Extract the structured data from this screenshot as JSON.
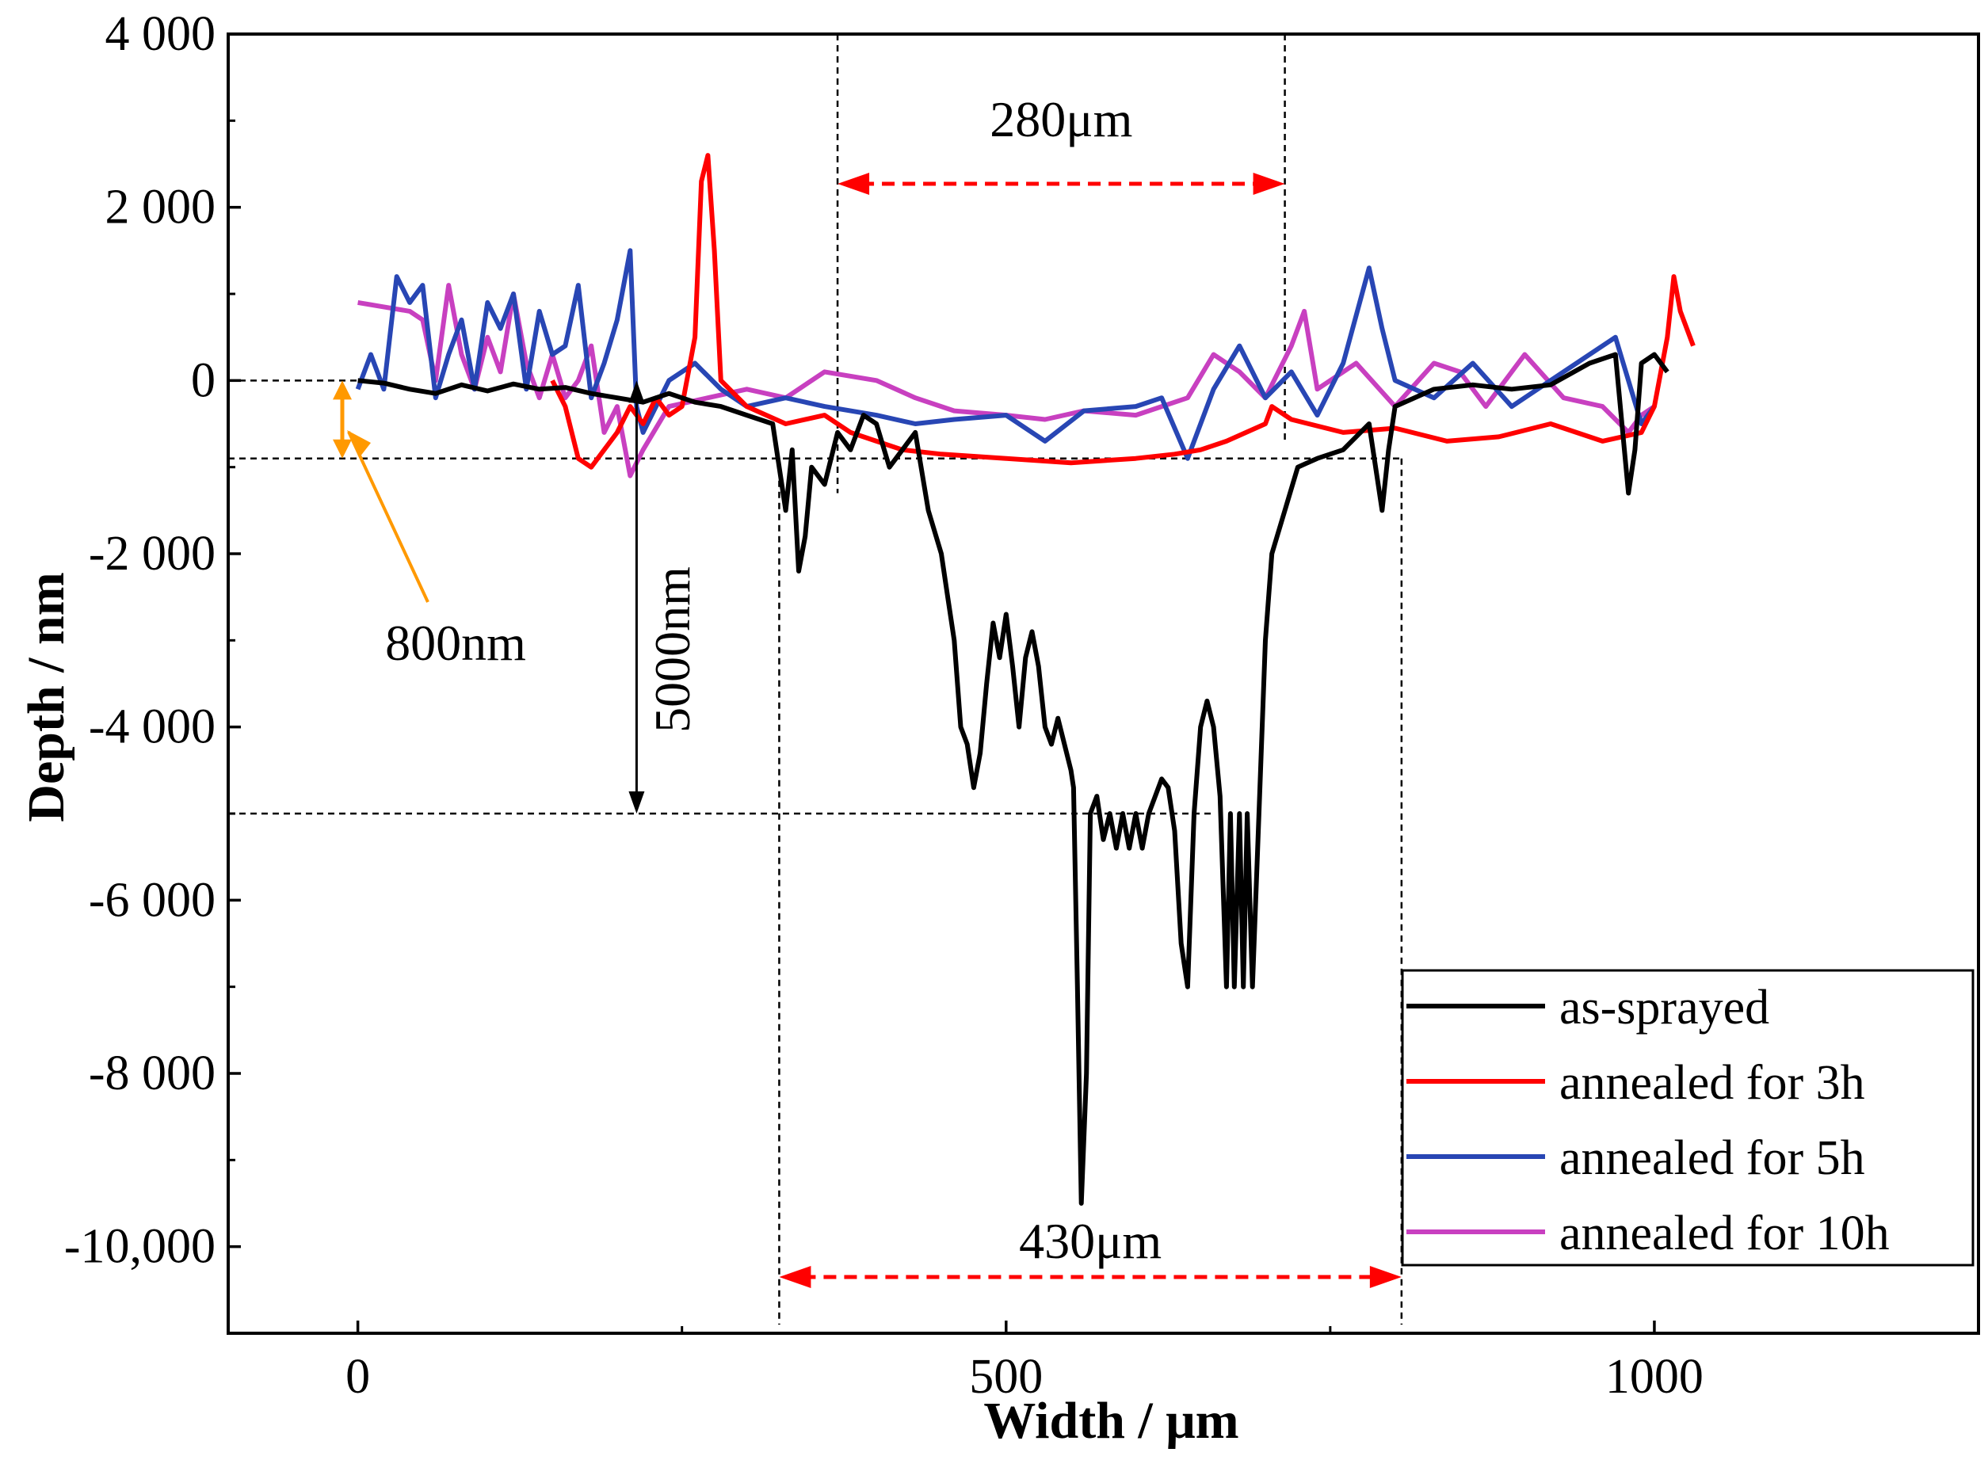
{
  "chart_data": {
    "type": "line",
    "title": "",
    "xlabel": "Width / μm",
    "ylabel": "Depth / nm",
    "xlim": [
      -100,
      1250
    ],
    "ylim": [
      -11000,
      4000
    ],
    "xticks": [
      0,
      500,
      1000
    ],
    "xtick_labels": [
      "0",
      "500",
      "1000"
    ],
    "yticks": [
      4000,
      2000,
      0,
      -2000,
      -4000,
      -6000,
      -8000,
      -10000
    ],
    "ytick_labels": [
      "4 000",
      "2 000",
      "0",
      "-2 000",
      "-4 000",
      "-6 000",
      "-8 000",
      "-10,000"
    ],
    "grid": false,
    "legend_position": "bottom-right",
    "series": [
      {
        "name": "as-sprayed",
        "color": "#000000",
        "points": [
          [
            0,
            0
          ],
          [
            20,
            -30
          ],
          [
            40,
            -100
          ],
          [
            60,
            -150
          ],
          [
            80,
            -50
          ],
          [
            100,
            -120
          ],
          [
            120,
            -40
          ],
          [
            140,
            -100
          ],
          [
            160,
            -80
          ],
          [
            180,
            -150
          ],
          [
            200,
            -200
          ],
          [
            220,
            -250
          ],
          [
            240,
            -150
          ],
          [
            260,
            -250
          ],
          [
            280,
            -300
          ],
          [
            300,
            -400
          ],
          [
            320,
            -500
          ],
          [
            330,
            -1500
          ],
          [
            335,
            -800
          ],
          [
            340,
            -2200
          ],
          [
            345,
            -1800
          ],
          [
            350,
            -1000
          ],
          [
            360,
            -1200
          ],
          [
            370,
            -600
          ],
          [
            380,
            -800
          ],
          [
            390,
            -400
          ],
          [
            400,
            -500
          ],
          [
            410,
            -1000
          ],
          [
            420,
            -800
          ],
          [
            430,
            -600
          ],
          [
            440,
            -1500
          ],
          [
            450,
            -2000
          ],
          [
            455,
            -2500
          ],
          [
            460,
            -3000
          ],
          [
            465,
            -4000
          ],
          [
            470,
            -4200
          ],
          [
            475,
            -4700
          ],
          [
            480,
            -4300
          ],
          [
            485,
            -3500
          ],
          [
            490,
            -2800
          ],
          [
            495,
            -3200
          ],
          [
            500,
            -2700
          ],
          [
            505,
            -3300
          ],
          [
            510,
            -4000
          ],
          [
            515,
            -3200
          ],
          [
            520,
            -2900
          ],
          [
            525,
            -3300
          ],
          [
            530,
            -4000
          ],
          [
            535,
            -4200
          ],
          [
            540,
            -3900
          ],
          [
            545,
            -4200
          ],
          [
            550,
            -4500
          ],
          [
            552,
            -4700
          ],
          [
            555,
            -7000
          ],
          [
            558,
            -9500
          ],
          [
            562,
            -8000
          ],
          [
            565,
            -5000
          ],
          [
            570,
            -4800
          ],
          [
            575,
            -5300
          ],
          [
            580,
            -5000
          ],
          [
            585,
            -5400
          ],
          [
            590,
            -5000
          ],
          [
            595,
            -5400
          ],
          [
            600,
            -5000
          ],
          [
            605,
            -5400
          ],
          [
            610,
            -5000
          ],
          [
            615,
            -4800
          ],
          [
            620,
            -4600
          ],
          [
            625,
            -4700
          ],
          [
            630,
            -5200
          ],
          [
            635,
            -6500
          ],
          [
            640,
            -7000
          ],
          [
            645,
            -5000
          ],
          [
            650,
            -4000
          ],
          [
            655,
            -3700
          ],
          [
            660,
            -4000
          ],
          [
            665,
            -4800
          ],
          [
            670,
            -7000
          ],
          [
            673,
            -5000
          ],
          [
            676,
            -7000
          ],
          [
            680,
            -5000
          ],
          [
            683,
            -7000
          ],
          [
            686,
            -5000
          ],
          [
            690,
            -7000
          ],
          [
            695,
            -5000
          ],
          [
            700,
            -3000
          ],
          [
            705,
            -2000
          ],
          [
            715,
            -1500
          ],
          [
            725,
            -1000
          ],
          [
            740,
            -900
          ],
          [
            760,
            -800
          ],
          [
            780,
            -500
          ],
          [
            790,
            -1500
          ],
          [
            795,
            -800
          ],
          [
            800,
            -300
          ],
          [
            830,
            -100
          ],
          [
            860,
            -50
          ],
          [
            890,
            -100
          ],
          [
            920,
            -50
          ],
          [
            950,
            200
          ],
          [
            970,
            300
          ],
          [
            980,
            -1300
          ],
          [
            985,
            -800
          ],
          [
            990,
            200
          ],
          [
            1000,
            300
          ],
          [
            1010,
            100
          ]
        ]
      },
      {
        "name": "annealed for 3h",
        "color": "#ff0000",
        "points": [
          [
            150,
            0
          ],
          [
            160,
            -300
          ],
          [
            170,
            -900
          ],
          [
            180,
            -1000
          ],
          [
            190,
            -800
          ],
          [
            200,
            -600
          ],
          [
            210,
            -300
          ],
          [
            220,
            -500
          ],
          [
            230,
            -200
          ],
          [
            240,
            -400
          ],
          [
            250,
            -300
          ],
          [
            260,
            500
          ],
          [
            265,
            2300
          ],
          [
            270,
            2600
          ],
          [
            275,
            1500
          ],
          [
            280,
            0
          ],
          [
            300,
            -300
          ],
          [
            330,
            -500
          ],
          [
            360,
            -400
          ],
          [
            380,
            -600
          ],
          [
            400,
            -700
          ],
          [
            420,
            -800
          ],
          [
            450,
            -850
          ],
          [
            500,
            -900
          ],
          [
            550,
            -950
          ],
          [
            600,
            -900
          ],
          [
            630,
            -850
          ],
          [
            650,
            -800
          ],
          [
            670,
            -700
          ],
          [
            700,
            -500
          ],
          [
            705,
            -300
          ],
          [
            720,
            -450
          ],
          [
            760,
            -600
          ],
          [
            800,
            -550
          ],
          [
            840,
            -700
          ],
          [
            880,
            -650
          ],
          [
            920,
            -500
          ],
          [
            960,
            -700
          ],
          [
            990,
            -600
          ],
          [
            1000,
            -300
          ],
          [
            1010,
            500
          ],
          [
            1015,
            1200
          ],
          [
            1020,
            800
          ],
          [
            1030,
            400
          ]
        ]
      },
      {
        "name": "annealed for 5h",
        "color": "#2846b4",
        "points": [
          [
            0,
            -100
          ],
          [
            10,
            300
          ],
          [
            20,
            -100
          ],
          [
            30,
            1200
          ],
          [
            40,
            900
          ],
          [
            50,
            1100
          ],
          [
            60,
            -200
          ],
          [
            70,
            300
          ],
          [
            80,
            700
          ],
          [
            90,
            -100
          ],
          [
            100,
            900
          ],
          [
            110,
            600
          ],
          [
            120,
            1000
          ],
          [
            130,
            -100
          ],
          [
            140,
            800
          ],
          [
            150,
            300
          ],
          [
            160,
            400
          ],
          [
            170,
            1100
          ],
          [
            180,
            -200
          ],
          [
            190,
            200
          ],
          [
            200,
            700
          ],
          [
            210,
            1500
          ],
          [
            215,
            -300
          ],
          [
            220,
            -600
          ],
          [
            240,
            0
          ],
          [
            260,
            200
          ],
          [
            280,
            -100
          ],
          [
            300,
            -300
          ],
          [
            330,
            -200
          ],
          [
            360,
            -300
          ],
          [
            400,
            -400
          ],
          [
            430,
            -500
          ],
          [
            460,
            -450
          ],
          [
            500,
            -400
          ],
          [
            530,
            -700
          ],
          [
            560,
            -350
          ],
          [
            600,
            -300
          ],
          [
            620,
            -200
          ],
          [
            640,
            -900
          ],
          [
            660,
            -100
          ],
          [
            680,
            400
          ],
          [
            700,
            -200
          ],
          [
            720,
            100
          ],
          [
            740,
            -400
          ],
          [
            760,
            200
          ],
          [
            780,
            1300
          ],
          [
            790,
            600
          ],
          [
            800,
            0
          ],
          [
            830,
            -200
          ],
          [
            860,
            200
          ],
          [
            890,
            -300
          ],
          [
            920,
            0
          ],
          [
            950,
            300
          ],
          [
            970,
            500
          ],
          [
            990,
            -500
          ],
          [
            1000,
            -300
          ]
        ]
      },
      {
        "name": "annealed for 10h",
        "color": "#c840c0",
        "points": [
          [
            0,
            900
          ],
          [
            20,
            850
          ],
          [
            40,
            800
          ],
          [
            50,
            700
          ],
          [
            60,
            0
          ],
          [
            70,
            1100
          ],
          [
            80,
            300
          ],
          [
            90,
            -100
          ],
          [
            100,
            500
          ],
          [
            110,
            100
          ],
          [
            120,
            1000
          ],
          [
            130,
            200
          ],
          [
            140,
            -200
          ],
          [
            150,
            300
          ],
          [
            160,
            -200
          ],
          [
            170,
            0
          ],
          [
            180,
            400
          ],
          [
            190,
            -600
          ],
          [
            200,
            -300
          ],
          [
            210,
            -1100
          ],
          [
            220,
            -800
          ],
          [
            240,
            -300
          ],
          [
            270,
            -200
          ],
          [
            300,
            -100
          ],
          [
            330,
            -200
          ],
          [
            360,
            100
          ],
          [
            400,
            0
          ],
          [
            430,
            -200
          ],
          [
            460,
            -350
          ],
          [
            500,
            -400
          ],
          [
            530,
            -450
          ],
          [
            560,
            -350
          ],
          [
            600,
            -400
          ],
          [
            640,
            -200
          ],
          [
            660,
            300
          ],
          [
            680,
            100
          ],
          [
            700,
            -200
          ],
          [
            720,
            400
          ],
          [
            730,
            800
          ],
          [
            740,
            -100
          ],
          [
            770,
            200
          ],
          [
            800,
            -300
          ],
          [
            830,
            200
          ],
          [
            850,
            100
          ],
          [
            870,
            -300
          ],
          [
            900,
            300
          ],
          [
            930,
            -200
          ],
          [
            960,
            -300
          ],
          [
            980,
            -600
          ],
          [
            990,
            -400
          ],
          [
            1000,
            -300
          ]
        ]
      }
    ],
    "annotations": {
      "label_280": "280μm",
      "label_430": "430μm",
      "label_800nm": "800nm",
      "label_5000nm": "5000nm",
      "ref_x_lines": [
        370,
        715,
        325,
        805
      ],
      "ref_y_lines": [
        0,
        -900,
        -5000
      ]
    }
  }
}
